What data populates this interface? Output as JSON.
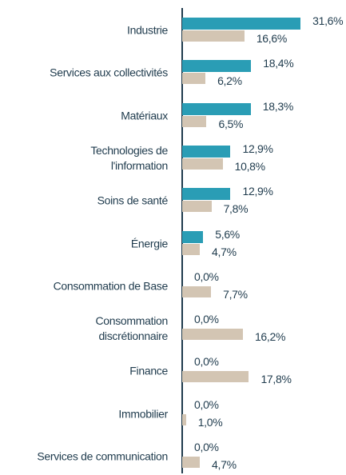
{
  "chart_data": {
    "type": "bar",
    "orientation": "horizontal",
    "categories": [
      "Industrie",
      "Services aux collectivités",
      "Matériaux",
      "Technologies de\nl'information",
      "Soins de santé",
      "Énergie",
      "Consommation de Base",
      "Consommation\ndiscrétionnaire",
      "Finance",
      "Immobilier",
      "Services de communication"
    ],
    "xlim": [
      0,
      32
    ],
    "series": [
      {
        "color": "#2a9db5",
        "values": [
          31.6,
          18.4,
          18.3,
          12.9,
          12.9,
          5.6,
          0.0,
          0.0,
          0.0,
          0.0,
          0.0
        ],
        "value_labels": [
          "31,6%",
          "18,4%",
          "18,3%",
          "12,9%",
          "12,9%",
          "5,6%",
          "0,0%",
          "0,0%",
          "0,0%",
          "0,0%",
          "0,0%"
        ]
      },
      {
        "color": "#d3c5b3",
        "values": [
          16.6,
          6.2,
          6.5,
          10.8,
          7.8,
          4.7,
          7.7,
          16.2,
          17.8,
          1.0,
          4.7
        ],
        "value_labels": [
          "16,6%",
          "6,2%",
          "6,5%",
          "10,8%",
          "7,8%",
          "4,7%",
          "7,7%",
          "16,2%",
          "17,8%",
          "1,0%",
          "4,7%"
        ]
      }
    ]
  }
}
